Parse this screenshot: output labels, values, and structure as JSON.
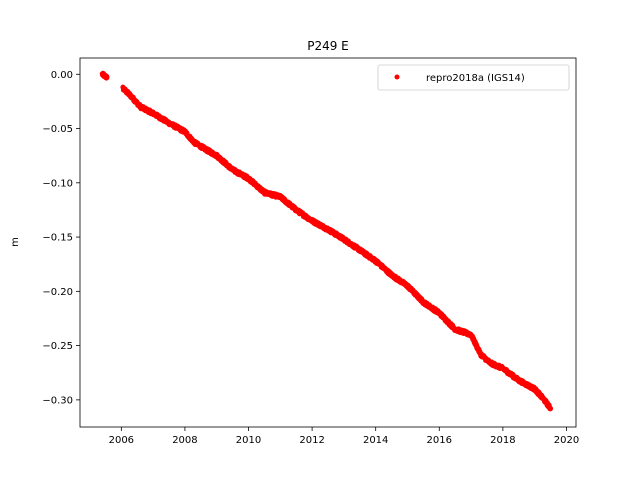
{
  "chart_data": {
    "type": "scatter",
    "title": "P249 E",
    "xlabel": "",
    "ylabel": "m",
    "xlim": [
      2004.7,
      2020.3
    ],
    "ylim": [
      -0.325,
      0.015
    ],
    "xticks": [
      2006,
      2008,
      2010,
      2012,
      2014,
      2016,
      2018,
      2020
    ],
    "xtick_labels": [
      "2006",
      "2008",
      "2010",
      "2012",
      "2014",
      "2016",
      "2018",
      "2020"
    ],
    "yticks": [
      0.0,
      -0.05,
      -0.1,
      -0.15,
      -0.2,
      -0.25,
      -0.3
    ],
    "ytick_labels": [
      "0.00",
      "−0.05",
      "−0.10",
      "−0.15",
      "−0.20",
      "−0.25",
      "−0.30"
    ],
    "grid": false,
    "legend_position": "top-right",
    "series": [
      {
        "name": "repro2018a (IGS14)",
        "color": "#ff0000",
        "marker": "circle",
        "segments": [
          {
            "x": [
              2005.4,
              2005.45,
              2005.5,
              2005.55
            ],
            "y": [
              0.0,
              -0.001,
              -0.002,
              -0.003
            ]
          },
          {
            "x": [
              2006.05,
              2006.3,
              2006.6,
              2007.0,
              2007.5,
              2008.0,
              2008.3,
              2008.7,
              2009.0,
              2009.5,
              2010.0,
              2010.5,
              2011.0,
              2011.5,
              2012.0,
              2012.5,
              2013.0,
              2013.5,
              2014.0,
              2014.5,
              2015.0,
              2015.5,
              2016.0,
              2016.5,
              2017.0,
              2017.3,
              2017.6,
              2018.0,
              2018.5,
              2019.0,
              2019.3,
              2019.5
            ],
            "y": [
              -0.013,
              -0.02,
              -0.03,
              -0.036,
              -0.045,
              -0.053,
              -0.063,
              -0.07,
              -0.075,
              -0.088,
              -0.096,
              -0.109,
              -0.113,
              -0.125,
              -0.135,
              -0.143,
              -0.152,
              -0.162,
              -0.172,
              -0.185,
              -0.195,
              -0.21,
              -0.22,
              -0.235,
              -0.24,
              -0.258,
              -0.266,
              -0.271,
              -0.282,
              -0.29,
              -0.3,
              -0.308
            ]
          }
        ]
      }
    ]
  }
}
